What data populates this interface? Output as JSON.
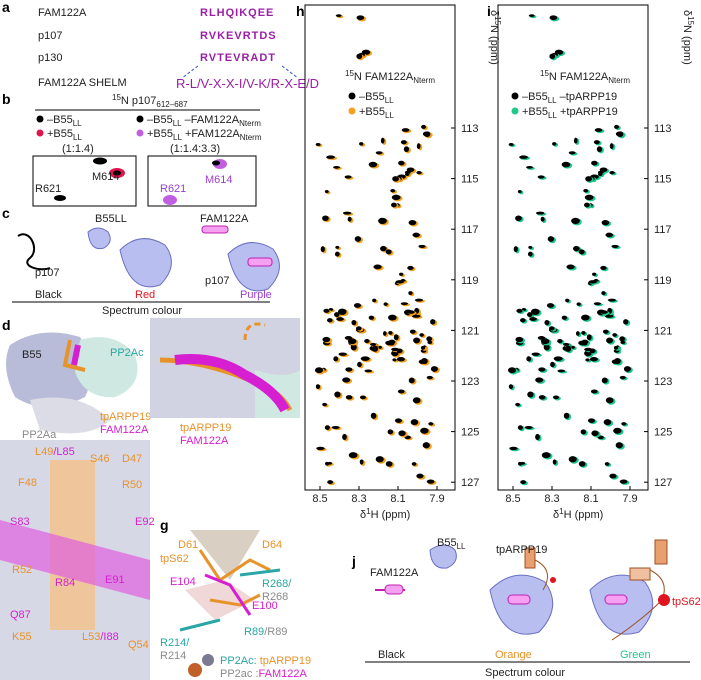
{
  "panel_labels": [
    "a",
    "b",
    "c",
    "d",
    "e",
    "f",
    "g",
    "h",
    "i",
    "j"
  ],
  "a": {
    "rows": [
      {
        "name": "FAM122A",
        "sequence": "RLHQIKQEE"
      },
      {
        "name": "p107",
        "sequence": "RVKEVRTDS"
      },
      {
        "name": "p130",
        "sequence": "RVTEVRADT"
      }
    ],
    "motif_name": "FAM122A SHELM",
    "motif": "R-L/V-X-X-I/V-K/R-X-E/D"
  },
  "b": {
    "title": [
      "15",
      "N p107",
      "612–687"
    ],
    "legend": [
      [
        "–B55",
        "LL"
      ],
      [
        "+B55",
        "LL"
      ],
      [
        "–B55",
        "LL",
        " –FAM122A",
        "Nterm"
      ],
      [
        "+B55",
        "LL",
        " +FAM122A",
        "Nterm"
      ]
    ],
    "ratios": [
      "(1:1.4)",
      "(1:1.4:3.3)"
    ],
    "residues": [
      "M614",
      "R621",
      "M614",
      "R621"
    ]
  },
  "c": {
    "labels": [
      "B55LL",
      "FAM122A",
      "p107",
      "p107"
    ],
    "colours": [
      "Black",
      "Red",
      "Purple"
    ],
    "caption": "Spectrum colour"
  },
  "d": {
    "labels": [
      "B55",
      "PP2Ac",
      "PP2Aa",
      "tpARPP19",
      "FAM122A"
    ]
  },
  "e": {
    "labels": [
      "tpARPP19",
      "FAM122A"
    ]
  },
  "f": {
    "labels": [
      [
        "L49",
        "/L85"
      ],
      [
        "S46"
      ],
      [
        "D47"
      ],
      [
        "F48"
      ],
      [
        "R50"
      ],
      [
        "S83"
      ],
      [
        "E92"
      ],
      [
        "R52"
      ],
      [
        "R84"
      ],
      [
        "E91"
      ],
      [
        "Q87"
      ],
      [
        "K55"
      ],
      [
        "L53",
        "/I88"
      ],
      [
        "Q54"
      ]
    ]
  },
  "g": {
    "labels": [
      [
        "D61"
      ],
      [
        "D64"
      ],
      [
        "tpS62"
      ],
      [
        "R268/",
        "R268"
      ],
      [
        "E104"
      ],
      [
        "E100"
      ],
      [
        "R89",
        "/R89"
      ],
      [
        "R214/",
        "R214"
      ]
    ],
    "key": [
      [
        "PP2Ac:",
        " tpARPP19"
      ],
      [
        "PP2ac :",
        "FAM122A"
      ]
    ]
  },
  "h": {
    "legend_title": [
      "15",
      "N FAM122A",
      "Nterm"
    ],
    "legend": [
      [
        "–B55",
        "LL"
      ],
      [
        "+B55",
        "LL"
      ]
    ]
  },
  "i": {
    "legend_title": [
      "15",
      "N FAM122A",
      "Nterm"
    ],
    "legend": [
      [
        "–B55",
        "LL",
        " –tpARPP19"
      ],
      [
        "+B55",
        "LL",
        " +tpARPP19"
      ]
    ]
  },
  "spectra": {
    "xticks": [
      8.5,
      8.3,
      8.1,
      7.9
    ],
    "yticks": [
      113,
      115,
      117,
      119,
      121,
      123,
      125,
      127
    ],
    "xlabel": [
      "δ",
      "1",
      "H (ppm)"
    ],
    "ylabel": [
      "δ",
      "15",
      "N (ppm)"
    ]
  },
  "j": {
    "labels": [
      "FAM122A",
      "B55",
      "LL",
      "tpARPP19",
      "tpS62"
    ],
    "colours": [
      "Black",
      "Orange",
      "Green"
    ],
    "caption": "Spectrum colour"
  }
}
